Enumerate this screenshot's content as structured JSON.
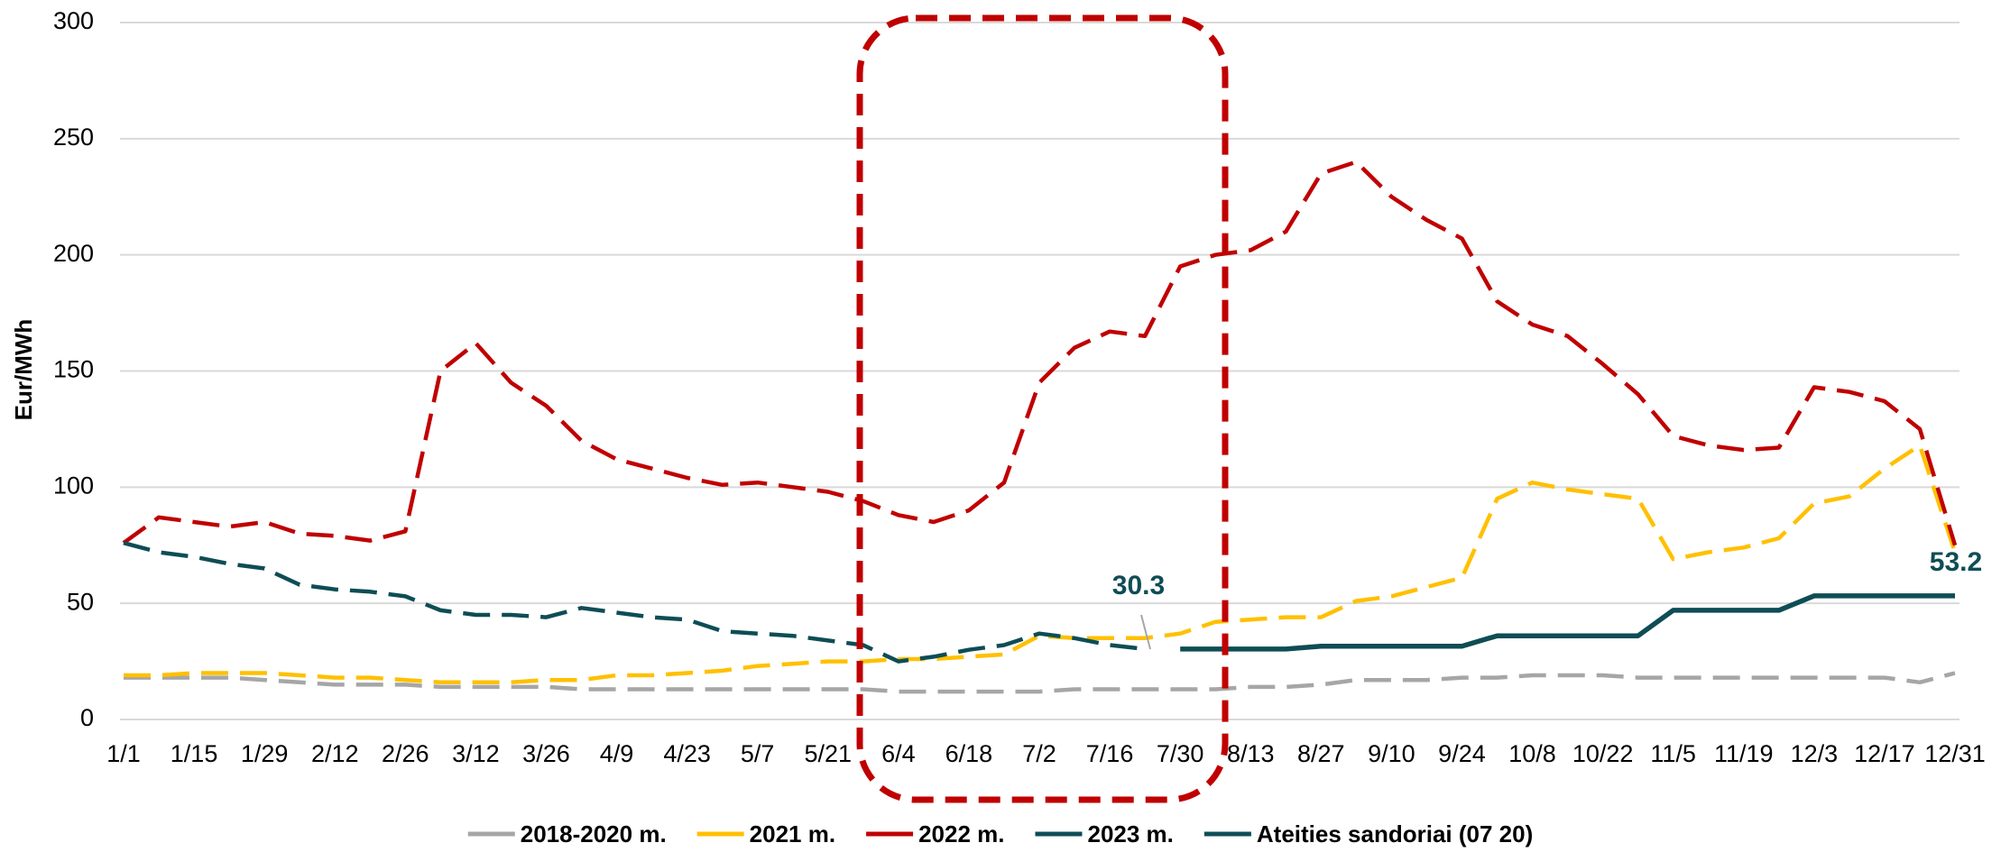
{
  "chart_data": {
    "type": "line",
    "y_label": "Eur/MWh",
    "x": [
      "1/1",
      "1/8",
      "1/15",
      "1/22",
      "1/29",
      "2/5",
      "2/12",
      "2/19",
      "2/26",
      "3/5",
      "3/12",
      "3/19",
      "3/26",
      "4/2",
      "4/9",
      "4/16",
      "4/23",
      "4/30",
      "5/7",
      "5/14",
      "5/21",
      "5/28",
      "6/4",
      "6/11",
      "6/18",
      "6/25",
      "7/2",
      "7/9",
      "7/16",
      "7/23",
      "7/30",
      "8/6",
      "8/13",
      "8/20",
      "8/27",
      "9/3",
      "9/10",
      "9/17",
      "9/24",
      "10/1",
      "10/8",
      "10/15",
      "10/22",
      "10/29",
      "11/5",
      "11/12",
      "11/19",
      "11/26",
      "12/3",
      "12/10",
      "12/17",
      "12/24",
      "12/31"
    ],
    "xticks": [
      "1/1",
      "1/15",
      "1/29",
      "2/12",
      "2/26",
      "3/12",
      "3/26",
      "4/9",
      "4/23",
      "5/7",
      "5/21",
      "6/4",
      "6/18",
      "7/2",
      "7/16",
      "7/30",
      "8/13",
      "8/27",
      "9/10",
      "9/24",
      "10/8",
      "10/22",
      "11/5",
      "11/19",
      "12/3",
      "12/17",
      "12/31"
    ],
    "ylim": [
      0,
      300
    ],
    "yticks": [
      0,
      50,
      100,
      150,
      200,
      250,
      300
    ],
    "grid": true,
    "legend": "bottom",
    "series": [
      {
        "name": "2018-2020 m.",
        "color": "#a6a6a6",
        "dashed": true,
        "values": [
          18,
          18,
          18,
          18,
          17,
          16,
          15,
          15,
          15,
          14,
          14,
          14,
          14,
          13,
          13,
          13,
          13,
          13,
          13,
          13,
          13,
          13,
          12,
          12,
          12,
          12,
          12,
          13,
          13,
          13,
          13,
          13,
          14,
          14,
          15,
          17,
          17,
          17,
          18,
          18,
          19,
          19,
          19,
          18,
          18,
          18,
          18,
          18,
          18,
          18,
          18,
          16,
          20
        ]
      },
      {
        "name": "2021 m.",
        "color": "#ffc000",
        "dashed": true,
        "values": [
          19,
          19,
          20,
          20,
          20,
          19,
          18,
          18,
          17,
          16,
          16,
          16,
          17,
          17,
          19,
          19,
          20,
          21,
          23,
          24,
          25,
          25,
          26,
          26,
          27,
          28,
          36,
          35,
          35,
          35,
          37,
          42,
          43,
          44,
          44,
          51,
          53,
          57,
          61,
          95,
          102,
          99,
          97,
          95,
          69,
          72,
          74,
          78,
          93,
          96,
          108,
          118,
          72
        ]
      },
      {
        "name": "2022 m.",
        "color": "#c00000",
        "dashed": true,
        "values": [
          76,
          87,
          85,
          83,
          85,
          80,
          79,
          77,
          81,
          150,
          162,
          145,
          135,
          120,
          112,
          108,
          104,
          101,
          102,
          100,
          98,
          94,
          88,
          85,
          90,
          102,
          145,
          160,
          167,
          165,
          195,
          200,
          202,
          210,
          235,
          240,
          225,
          215,
          207,
          180,
          170,
          165,
          153,
          140,
          122,
          118,
          116,
          117,
          143,
          141,
          137,
          125,
          75
        ]
      },
      {
        "name": "2023 m.",
        "color": "#0e4d55",
        "dashed": true,
        "values": [
          76,
          72,
          70,
          67,
          65,
          58,
          56,
          55,
          53,
          47,
          45,
          45,
          44,
          48,
          46,
          44,
          43,
          38,
          37,
          36,
          34,
          32,
          25,
          27,
          30,
          32,
          37,
          35,
          32,
          30.3,
          null,
          null,
          null,
          null,
          null,
          null,
          null,
          null,
          null,
          null,
          null,
          null,
          null,
          null,
          null,
          null,
          null,
          null,
          null,
          null,
          null,
          null,
          null
        ]
      },
      {
        "name": "Ateities sandoriai (07 20)",
        "color": "#0e4d55",
        "dashed": false,
        "values": [
          null,
          null,
          null,
          null,
          null,
          null,
          null,
          null,
          null,
          null,
          null,
          null,
          null,
          null,
          null,
          null,
          null,
          null,
          null,
          null,
          null,
          null,
          null,
          null,
          null,
          null,
          null,
          null,
          null,
          null,
          30.3,
          30.3,
          30.3,
          30.3,
          31.5,
          31.5,
          31.5,
          31.5,
          31.5,
          36,
          36,
          36,
          36,
          36,
          47,
          47,
          47,
          47,
          53.2,
          53.2,
          53.2,
          53.2,
          53.2
        ]
      }
    ],
    "annotations": [
      "30.3",
      "53.2"
    ]
  }
}
